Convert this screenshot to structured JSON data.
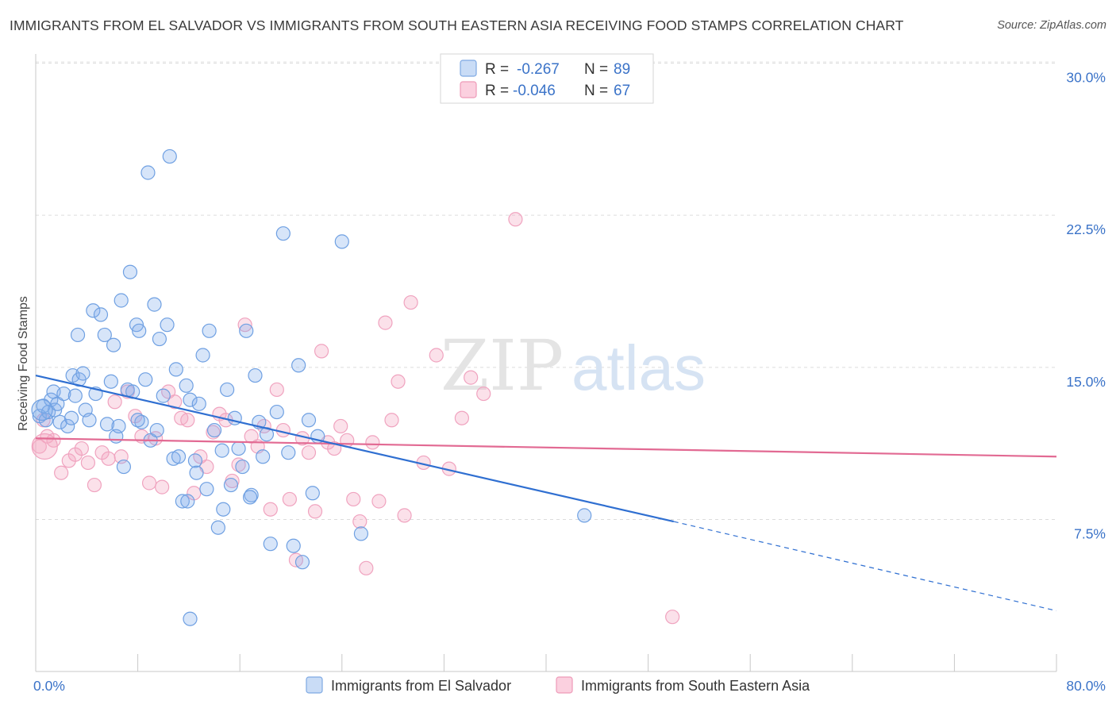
{
  "title": "IMMIGRANTS FROM EL SALVADOR VS IMMIGRANTS FROM SOUTH EASTERN ASIA RECEIVING FOOD STAMPS CORRELATION CHART",
  "source": "Source: ZipAtlas.com",
  "watermark": {
    "zip": "ZIP",
    "atlas": "atlas"
  },
  "colors": {
    "blue": "#6fa3e6",
    "blue_line": "#2f6fd1",
    "pink": "#f19bb8",
    "pink_line": "#e26a93",
    "axis_text": "#3b73c8"
  },
  "legend_stats": [
    {
      "r_label": "R = ",
      "r_value": "-0.267",
      "n_label": "N = ",
      "n_value": "89"
    },
    {
      "r_label": "R = ",
      "r_value": "-0.046",
      "n_label": "N = ",
      "n_value": "67"
    }
  ],
  "chart_data": {
    "type": "scatter",
    "title": "IMMIGRANTS FROM EL SALVADOR VS IMMIGRANTS FROM SOUTH EASTERN ASIA RECEIVING FOOD STAMPS CORRELATION CHART",
    "xlabel": "",
    "ylabel": "Receiving Food Stamps",
    "xlim": [
      0,
      80
    ],
    "ylim": [
      0,
      31
    ],
    "x_tick_labels": [
      "0.0%",
      "80.0%"
    ],
    "y_ticks": [
      7.5,
      15.0,
      22.5,
      30.0
    ],
    "y_tick_labels": [
      "7.5%",
      "15.0%",
      "22.5%",
      "30.0%"
    ],
    "grid": "horizontal dashed",
    "legend_position": "bottom",
    "series": [
      {
        "name": "Immigrants from El Salvador",
        "r": -0.267,
        "n": 89,
        "trend": {
          "x0": 0,
          "y0": 14.6,
          "x1": 50,
          "y1": 7.4,
          "dashed_to_x": 80,
          "dashed_to_y": 3.0
        },
        "points": [
          [
            0.3,
            12.6
          ],
          [
            0.6,
            13.1
          ],
          [
            0.8,
            12.4
          ],
          [
            1.0,
            12.8
          ],
          [
            1.2,
            13.4
          ],
          [
            1.4,
            13.8
          ],
          [
            1.5,
            12.9
          ],
          [
            1.7,
            13.2
          ],
          [
            1.9,
            12.3
          ],
          [
            2.2,
            13.7
          ],
          [
            2.5,
            12.1
          ],
          [
            2.8,
            12.5
          ],
          [
            2.9,
            14.6
          ],
          [
            3.1,
            13.6
          ],
          [
            3.3,
            16.6
          ],
          [
            3.4,
            14.4
          ],
          [
            3.7,
            14.7
          ],
          [
            3.9,
            12.9
          ],
          [
            4.2,
            12.4
          ],
          [
            4.5,
            17.8
          ],
          [
            4.7,
            13.7
          ],
          [
            5.1,
            17.6
          ],
          [
            5.4,
            16.6
          ],
          [
            5.6,
            12.2
          ],
          [
            5.9,
            14.3
          ],
          [
            6.1,
            16.1
          ],
          [
            6.3,
            11.6
          ],
          [
            6.5,
            12.1
          ],
          [
            6.7,
            18.3
          ],
          [
            6.9,
            10.1
          ],
          [
            7.2,
            13.9
          ],
          [
            7.4,
            19.7
          ],
          [
            7.6,
            13.8
          ],
          [
            7.9,
            17.1
          ],
          [
            8.1,
            16.8
          ],
          [
            8.3,
            12.3
          ],
          [
            8.6,
            14.4
          ],
          [
            8.8,
            24.6
          ],
          [
            9.0,
            11.4
          ],
          [
            9.3,
            18.1
          ],
          [
            9.5,
            11.9
          ],
          [
            9.7,
            16.4
          ],
          [
            10.0,
            13.6
          ],
          [
            10.3,
            17.1
          ],
          [
            10.5,
            25.4
          ],
          [
            10.8,
            10.5
          ],
          [
            11.0,
            14.9
          ],
          [
            11.2,
            10.6
          ],
          [
            11.5,
            8.4
          ],
          [
            11.8,
            14.1
          ],
          [
            12.1,
            13.4
          ],
          [
            12.5,
            10.4
          ],
          [
            12.8,
            13.2
          ],
          [
            13.1,
            15.6
          ],
          [
            13.4,
            9.0
          ],
          [
            13.6,
            16.8
          ],
          [
            14.0,
            11.9
          ],
          [
            14.3,
            7.1
          ],
          [
            14.6,
            10.9
          ],
          [
            15.0,
            13.9
          ],
          [
            15.3,
            9.2
          ],
          [
            15.6,
            12.5
          ],
          [
            15.9,
            11.0
          ],
          [
            16.2,
            10.1
          ],
          [
            16.5,
            16.8
          ],
          [
            16.9,
            8.7
          ],
          [
            17.2,
            14.6
          ],
          [
            17.5,
            12.3
          ],
          [
            17.8,
            10.6
          ],
          [
            18.1,
            11.7
          ],
          [
            18.4,
            6.3
          ],
          [
            18.9,
            12.8
          ],
          [
            19.4,
            21.6
          ],
          [
            19.8,
            10.8
          ],
          [
            20.2,
            6.2
          ],
          [
            20.6,
            15.1
          ],
          [
            20.9,
            5.4
          ],
          [
            21.4,
            12.4
          ],
          [
            21.7,
            8.8
          ],
          [
            22.1,
            11.6
          ],
          [
            11.9,
            8.4
          ],
          [
            12.6,
            9.8
          ],
          [
            16.8,
            8.6
          ],
          [
            24.0,
            21.2
          ],
          [
            25.5,
            6.8
          ],
          [
            43.0,
            7.7
          ],
          [
            14.7,
            8.0
          ],
          [
            8.0,
            12.4
          ],
          [
            12.1,
            2.6
          ]
        ]
      },
      {
        "name": "Immigrants from South Eastern Asia",
        "r": -0.046,
        "n": 67,
        "trend": {
          "x0": 0,
          "y0": 11.5,
          "x1": 80,
          "y1": 10.6
        },
        "points": [
          [
            0.3,
            11.1
          ],
          [
            0.6,
            12.4
          ],
          [
            0.9,
            11.6
          ],
          [
            1.4,
            11.4
          ],
          [
            2.0,
            9.8
          ],
          [
            2.6,
            10.4
          ],
          [
            3.1,
            10.7
          ],
          [
            3.6,
            11.0
          ],
          [
            4.1,
            10.3
          ],
          [
            4.6,
            9.2
          ],
          [
            5.2,
            10.8
          ],
          [
            5.7,
            10.5
          ],
          [
            6.2,
            13.3
          ],
          [
            6.7,
            10.6
          ],
          [
            7.2,
            13.8
          ],
          [
            7.8,
            12.6
          ],
          [
            8.3,
            11.6
          ],
          [
            8.9,
            9.3
          ],
          [
            9.4,
            11.5
          ],
          [
            9.9,
            9.1
          ],
          [
            10.4,
            13.8
          ],
          [
            10.9,
            13.3
          ],
          [
            11.4,
            12.5
          ],
          [
            11.9,
            12.4
          ],
          [
            12.4,
            8.8
          ],
          [
            12.9,
            10.6
          ],
          [
            13.4,
            10.1
          ],
          [
            13.9,
            11.8
          ],
          [
            14.4,
            12.7
          ],
          [
            14.9,
            12.4
          ],
          [
            15.4,
            9.4
          ],
          [
            15.9,
            10.2
          ],
          [
            16.4,
            17.1
          ],
          [
            16.9,
            11.6
          ],
          [
            17.4,
            11.1
          ],
          [
            17.9,
            12.1
          ],
          [
            18.4,
            8.0
          ],
          [
            18.9,
            13.9
          ],
          [
            19.4,
            11.9
          ],
          [
            19.9,
            8.5
          ],
          [
            20.4,
            5.5
          ],
          [
            20.9,
            11.5
          ],
          [
            21.4,
            10.8
          ],
          [
            21.9,
            7.9
          ],
          [
            22.4,
            15.8
          ],
          [
            22.9,
            11.3
          ],
          [
            23.4,
            11.0
          ],
          [
            23.9,
            12.1
          ],
          [
            24.4,
            11.4
          ],
          [
            24.9,
            8.5
          ],
          [
            25.4,
            7.4
          ],
          [
            25.9,
            5.1
          ],
          [
            26.4,
            11.3
          ],
          [
            26.9,
            8.4
          ],
          [
            27.4,
            17.2
          ],
          [
            27.9,
            12.4
          ],
          [
            28.4,
            14.3
          ],
          [
            28.9,
            7.7
          ],
          [
            29.4,
            18.2
          ],
          [
            30.4,
            10.3
          ],
          [
            31.4,
            15.6
          ],
          [
            32.4,
            10.0
          ],
          [
            33.4,
            12.5
          ],
          [
            34.1,
            14.5
          ],
          [
            35.1,
            13.7
          ],
          [
            37.6,
            22.3
          ],
          [
            49.9,
            2.7
          ]
        ]
      }
    ]
  }
}
